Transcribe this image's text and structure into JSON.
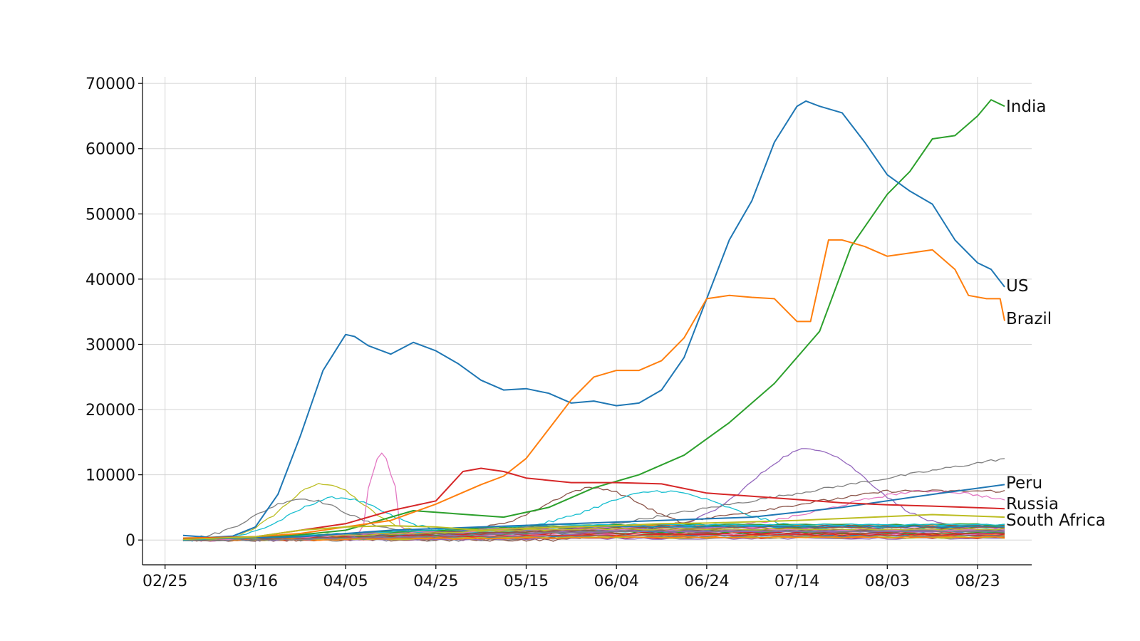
{
  "chart_data": {
    "type": "line",
    "title": "",
    "xlabel": "",
    "ylabel": "",
    "x_tick_labels": [
      "02/25",
      "03/16",
      "04/05",
      "04/25",
      "05/15",
      "06/04",
      "06/24",
      "07/14",
      "08/03",
      "08/23"
    ],
    "x_tick_days": [
      0,
      20,
      40,
      60,
      80,
      100,
      120,
      140,
      160,
      180
    ],
    "xlim_days": [
      -5,
      192
    ],
    "y_ticks": [
      0,
      10000,
      20000,
      30000,
      40000,
      50000,
      60000,
      70000
    ],
    "ylim": [
      -3800,
      71000
    ],
    "grid": true,
    "x_values_note": "x values are the dates on the axis, expressed as day offsets from the 02/25 tick",
    "series": [
      {
        "name": "India",
        "color": "#2ca02c",
        "labelled": true,
        "points": [
          [
            4,
            300
          ],
          [
            20,
            400
          ],
          [
            30,
            800
          ],
          [
            40,
            1500
          ],
          [
            55,
            4500
          ],
          [
            65,
            4000
          ],
          [
            75,
            3500
          ],
          [
            85,
            5000
          ],
          [
            95,
            8000
          ],
          [
            105,
            10000
          ],
          [
            115,
            13000
          ],
          [
            125,
            18000
          ],
          [
            135,
            24000
          ],
          [
            145,
            32000
          ],
          [
            152,
            45000
          ],
          [
            160,
            53000
          ],
          [
            165,
            56500
          ],
          [
            170,
            61500
          ],
          [
            175,
            62000
          ],
          [
            180,
            65000
          ],
          [
            183,
            67500
          ],
          [
            186,
            66500
          ]
        ]
      },
      {
        "name": "US",
        "color": "#1f77b4",
        "labelled": true,
        "points": [
          [
            4,
            700
          ],
          [
            10,
            400
          ],
          [
            15,
            600
          ],
          [
            20,
            2000
          ],
          [
            25,
            7000
          ],
          [
            30,
            16000
          ],
          [
            35,
            26000
          ],
          [
            40,
            31500
          ],
          [
            42,
            31200
          ],
          [
            45,
            29800
          ],
          [
            50,
            28500
          ],
          [
            55,
            30300
          ],
          [
            60,
            29000
          ],
          [
            65,
            27000
          ],
          [
            70,
            24500
          ],
          [
            75,
            23000
          ],
          [
            80,
            23200
          ],
          [
            85,
            22500
          ],
          [
            90,
            21000
          ],
          [
            95,
            21300
          ],
          [
            100,
            20600
          ],
          [
            105,
            21000
          ],
          [
            110,
            23000
          ],
          [
            115,
            28000
          ],
          [
            120,
            37000
          ],
          [
            125,
            46000
          ],
          [
            130,
            52000
          ],
          [
            135,
            61000
          ],
          [
            140,
            66500
          ],
          [
            142,
            67300
          ],
          [
            145,
            66500
          ],
          [
            150,
            65500
          ],
          [
            155,
            61000
          ],
          [
            160,
            56000
          ],
          [
            165,
            53500
          ],
          [
            170,
            51500
          ],
          [
            175,
            46000
          ],
          [
            180,
            42500
          ],
          [
            183,
            41500
          ],
          [
            186,
            38800
          ]
        ]
      },
      {
        "name": "Brazil",
        "color": "#ff7f0e",
        "labelled": true,
        "points": [
          [
            4,
            300
          ],
          [
            20,
            500
          ],
          [
            30,
            1000
          ],
          [
            40,
            2000
          ],
          [
            50,
            3000
          ],
          [
            60,
            5500
          ],
          [
            70,
            8500
          ],
          [
            75,
            9800
          ],
          [
            80,
            12500
          ],
          [
            85,
            17000
          ],
          [
            90,
            21500
          ],
          [
            95,
            25000
          ],
          [
            100,
            26000
          ],
          [
            105,
            26000
          ],
          [
            110,
            27500
          ],
          [
            115,
            31000
          ],
          [
            120,
            37000
          ],
          [
            125,
            37500
          ],
          [
            130,
            37200
          ],
          [
            135,
            37000
          ],
          [
            140,
            33500
          ],
          [
            143,
            33500
          ],
          [
            147,
            46000
          ],
          [
            150,
            46000
          ],
          [
            155,
            45000
          ],
          [
            160,
            43500
          ],
          [
            165,
            44000
          ],
          [
            170,
            44500
          ],
          [
            175,
            41500
          ],
          [
            178,
            37500
          ],
          [
            182,
            37000
          ],
          [
            185,
            37000
          ],
          [
            186,
            33600
          ]
        ]
      },
      {
        "name": "Peru",
        "color": "#1f77b4",
        "labelled": true,
        "points": [
          [
            4,
            100
          ],
          [
            30,
            500
          ],
          [
            50,
            1500
          ],
          [
            70,
            2000
          ],
          [
            90,
            2500
          ],
          [
            110,
            3000
          ],
          [
            130,
            3500
          ],
          [
            150,
            5000
          ],
          [
            170,
            7000
          ],
          [
            186,
            8500
          ]
        ]
      },
      {
        "name": "Russia",
        "color": "#d62728",
        "labelled": true,
        "points": [
          [
            4,
            200
          ],
          [
            20,
            500
          ],
          [
            30,
            1500
          ],
          [
            40,
            2500
          ],
          [
            50,
            4500
          ],
          [
            60,
            6000
          ],
          [
            66,
            10500
          ],
          [
            70,
            11000
          ],
          [
            75,
            10500
          ],
          [
            80,
            9500
          ],
          [
            90,
            8800
          ],
          [
            100,
            8800
          ],
          [
            110,
            8600
          ],
          [
            120,
            7200
          ],
          [
            130,
            6700
          ],
          [
            140,
            6200
          ],
          [
            150,
            5700
          ],
          [
            160,
            5400
          ],
          [
            170,
            5200
          ],
          [
            186,
            4800
          ]
        ]
      },
      {
        "name": "South Africa",
        "color": "#bcbd22",
        "labelled": true,
        "points": [
          [
            4,
            100
          ],
          [
            20,
            500
          ],
          [
            30,
            1500
          ],
          [
            40,
            2000
          ],
          [
            50,
            2200
          ],
          [
            60,
            2000
          ],
          [
            70,
            1500
          ],
          [
            80,
            1800
          ],
          [
            90,
            2000
          ],
          [
            100,
            2200
          ],
          [
            110,
            2500
          ],
          [
            120,
            2600
          ],
          [
            130,
            2800
          ],
          [
            140,
            3000
          ],
          [
            150,
            3300
          ],
          [
            160,
            3600
          ],
          [
            170,
            3900
          ],
          [
            186,
            3500
          ]
        ]
      }
    ]
  }
}
